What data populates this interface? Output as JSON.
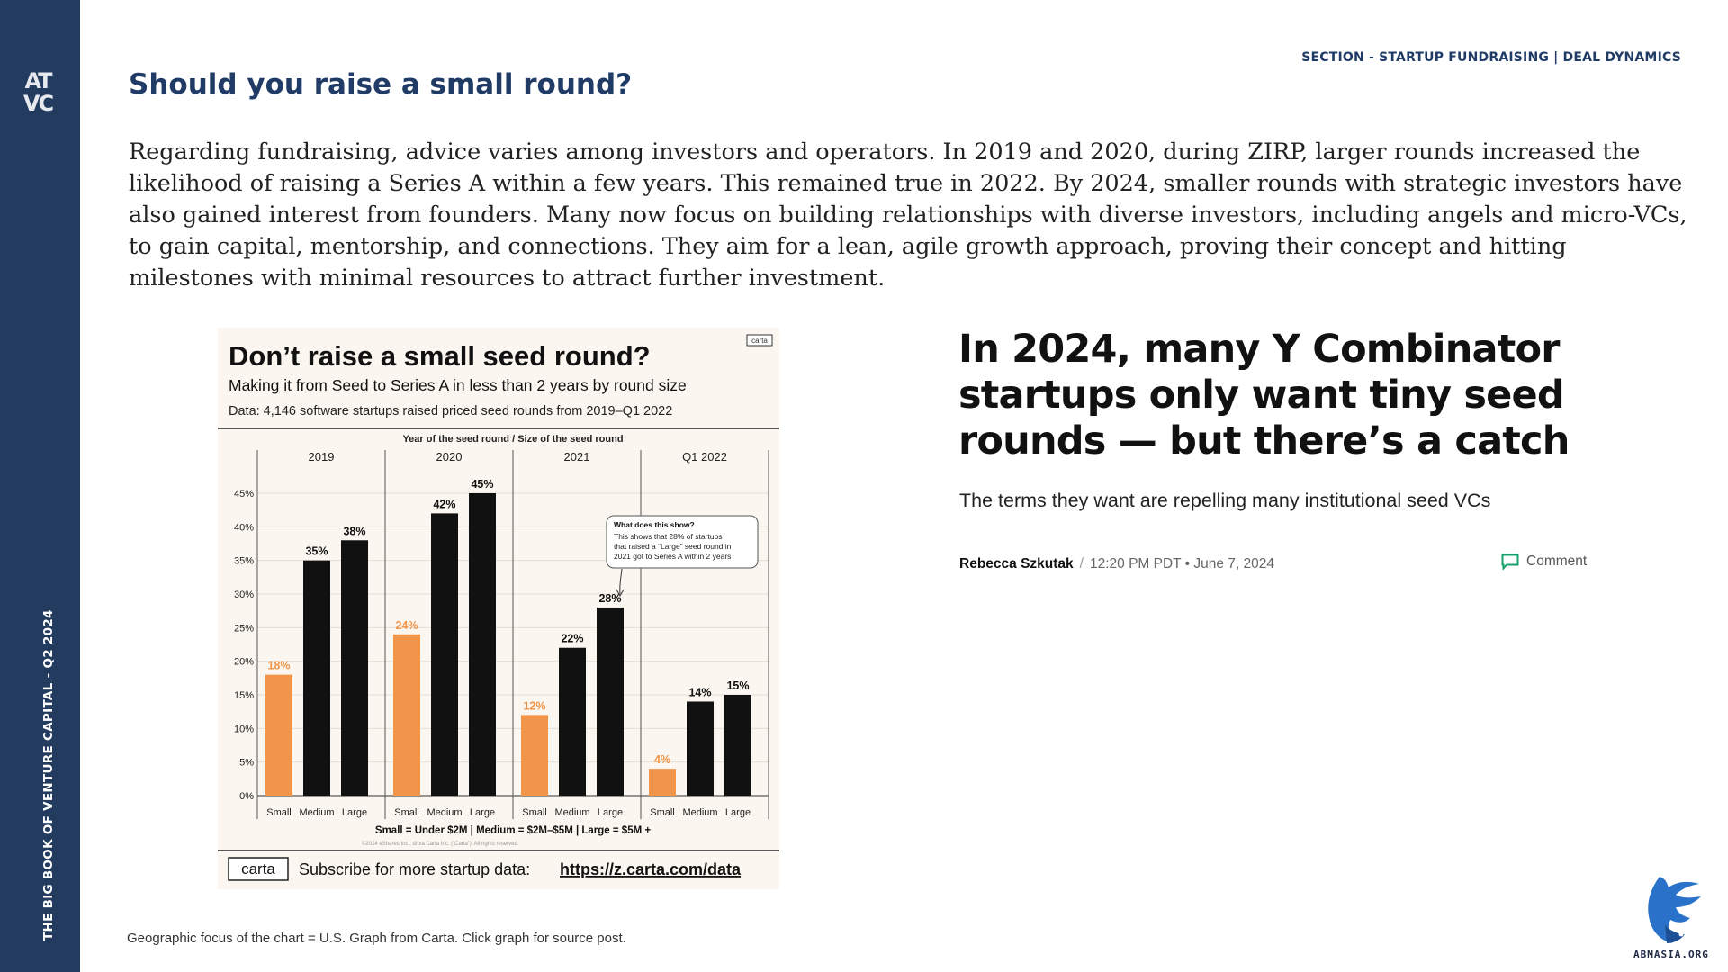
{
  "sidebar": {
    "logo_text": "ATVC",
    "vertical_title": "THE BIG BOOK OF VENTURE CAPITAL - Q2 2024"
  },
  "header": {
    "section_label": "SECTION - STARTUP FUNDRAISING | DEAL DYNAMICS",
    "title": "Should you raise a small round?"
  },
  "body_text": "Regarding fundraising, advice varies among investors and operators. In 2019 and 2020, during ZIRP, larger rounds increased the likelihood of raising a Series A within a few years. This remained true in 2022. By 2024, smaller rounds with strategic investors have also gained interest from founders. Many now focus on building relationships with diverse investors, including angels and micro-VCs, to gain capital, mentorship, and connections. They aim for a lean, agile growth approach, proving their concept and hitting milestones with minimal resources to attract further investment.",
  "chart_card": {
    "brand_tag": "carta",
    "title": "Don’t raise a small seed round?",
    "subtitle": "Making it from Seed to Series A in less than 2 years by round size",
    "data_note": "Data: 4,146 software startups raised priced seed rounds from 2019–Q1 2022",
    "group_header": "Year of the seed round / Size of the seed round",
    "callout_title": "What does this show?",
    "callout_lines": [
      "This shows that 28% of startups",
      "that raised a “Large” seed round in",
      "2021 got to Series A within 2 years"
    ],
    "legend_note": "Small = Under $2M | Medium = $2M–$5M | Large = $5M +",
    "copyright": "©2024 eShares Inc., d/b/a Carta Inc. (“Carta”). All rights reserved.",
    "footer_brand": "carta",
    "footer_text": "Subscribe for more startup data:",
    "footer_link": "https://z.carta.com/data"
  },
  "chart_data": {
    "type": "bar",
    "title": "Don’t raise a small seed round?",
    "ylim": [
      0,
      45
    ],
    "y_ticks": [
      "0%",
      "5%",
      "10%",
      "15%",
      "20%",
      "25%",
      "30%",
      "35%",
      "40%",
      "45%"
    ],
    "groups": [
      "2019",
      "2020",
      "2021",
      "Q1 2022"
    ],
    "categories": [
      "Small",
      "Medium",
      "Large"
    ],
    "series": [
      {
        "group": "2019",
        "values": [
          18,
          35,
          38
        ],
        "labels": [
          "18%",
          "35%",
          "38%"
        ]
      },
      {
        "group": "2020",
        "values": [
          24,
          42,
          45
        ],
        "labels": [
          "24%",
          "42%",
          "45%"
        ]
      },
      {
        "group": "2021",
        "values": [
          12,
          22,
          28
        ],
        "labels": [
          "12%",
          "22%",
          "28%"
        ]
      },
      {
        "group": "Q1 2022",
        "values": [
          4,
          14,
          15
        ],
        "labels": [
          "4%",
          "14%",
          "15%"
        ]
      }
    ],
    "colors": {
      "small": "#f0954a",
      "other": "#111111",
      "small_label": "#f0954a"
    },
    "grid": true
  },
  "footnote": "Geographic focus of the chart = U.S. Graph from Carta. Click graph for source post.",
  "article": {
    "headline": "In 2024, many Y Combinator startups only want tiny seed rounds — but there’s a catch",
    "dek": "The terms they want are repelling many institutional seed VCs",
    "author": "Rebecca Szkutak",
    "separator": "/",
    "timestamp": "12:20 PM PDT • June 7, 2024",
    "comment_label": "Comment"
  },
  "brand_logo": {
    "caption": "ABMASIA.ORG"
  },
  "colors": {
    "sidebar": "#233b5e",
    "title": "#1f3b66",
    "comment_icon": "#1aa06d"
  }
}
